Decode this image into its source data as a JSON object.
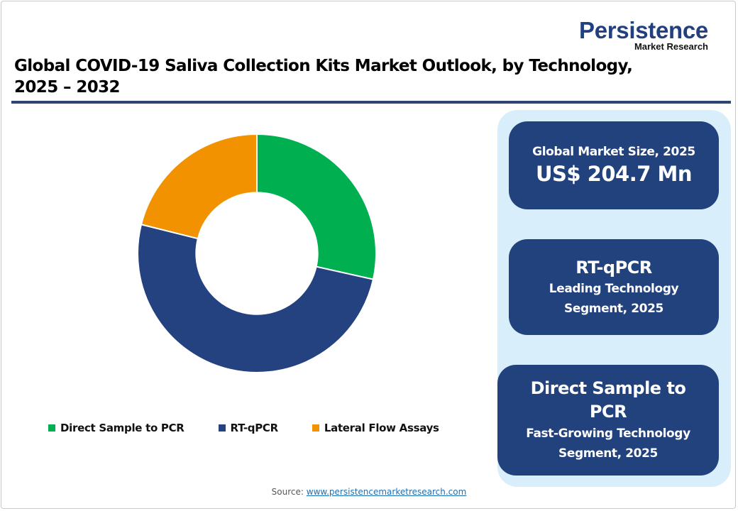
{
  "brand": {
    "name": "Persistence",
    "tagline": "Market Research",
    "color": "#22407f"
  },
  "header": {
    "title_line1": "Global COVID-19 Saliva Collection Kits Market Outlook, by Technology,",
    "title_line2": "2025 – 2032"
  },
  "chart_data": {
    "type": "pie",
    "subtype": "donut",
    "title": "Global COVID-19 Saliva Collection Kits Market Outlook, by Technology, 2025 – 2032",
    "categories": [
      "Direct Sample to PCR",
      "RT-qPCR",
      "Lateral Flow Assays"
    ],
    "values": [
      28.5,
      50.4,
      21.1
    ],
    "unit": "% share (estimated from slice angles)",
    "colors": [
      "#00b050",
      "#23427f",
      "#f39200"
    ],
    "start_angle_deg": 0,
    "direction": "clockwise",
    "inner_radius_ratio": 0.51,
    "legend_position": "bottom",
    "data_labels": false
  },
  "legend": {
    "items": [
      {
        "label": "Direct Sample to PCR",
        "color": "#00b050"
      },
      {
        "label": "RT-qPCR",
        "color": "#23427f"
      },
      {
        "label": "Lateral Flow Assays",
        "color": "#f39200"
      }
    ]
  },
  "panel": {
    "background": "#d8eefb",
    "box_color": "#22427e",
    "market_size": {
      "label": "Global Market Size, 2025",
      "value": "US$ 204.7 Mn"
    },
    "leading": {
      "segment": "RT-qPCR",
      "line1": "Leading Technology",
      "line2": "Segment, 2025"
    },
    "fastest": {
      "segment": "Direct Sample to PCR",
      "line1": "Fast-Growing Technology",
      "line2": "Segment, 2025"
    }
  },
  "footer": {
    "source_label": "Source:",
    "source_link": "www.persistencemarketresearch.com"
  }
}
